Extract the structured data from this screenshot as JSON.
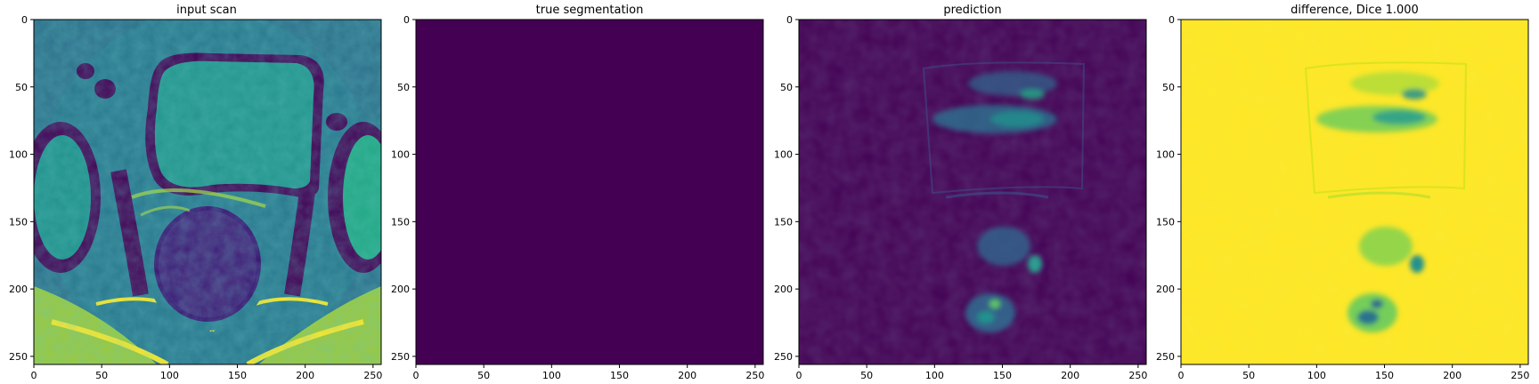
{
  "figure": {
    "panels": [
      {
        "id": "input-scan",
        "title": "input scan",
        "image": "grayscale MRI scan rendered with viridis colormap (bladder, rectum, pelvic muscles)",
        "colors": {
          "low": "#440154",
          "mid": "#21918c",
          "high": "#fde725"
        }
      },
      {
        "id": "true-segmentation",
        "title": "true segmentation",
        "image": "uniform empty mask",
        "colors": {
          "fill": "#440154"
        }
      },
      {
        "id": "prediction",
        "title": "prediction",
        "image": "mostly dark prediction map with faint activations",
        "colors": {
          "low": "#440154",
          "mid": "#2c728e",
          "high": "#5ec962"
        }
      },
      {
        "id": "difference",
        "title": "difference, Dice 1.000",
        "image": "mostly bright difference map with faint structures",
        "colors": {
          "low": "#440154",
          "mid": "#31688e",
          "high": "#fde725"
        }
      }
    ],
    "axes": {
      "x_ticks": [
        "0",
        "50",
        "100",
        "150",
        "200",
        "250"
      ],
      "y_ticks": [
        "0",
        "50",
        "100",
        "150",
        "200",
        "250"
      ],
      "tick_values": [
        0,
        50,
        100,
        150,
        200,
        250
      ],
      "range": [
        0,
        256
      ]
    }
  }
}
